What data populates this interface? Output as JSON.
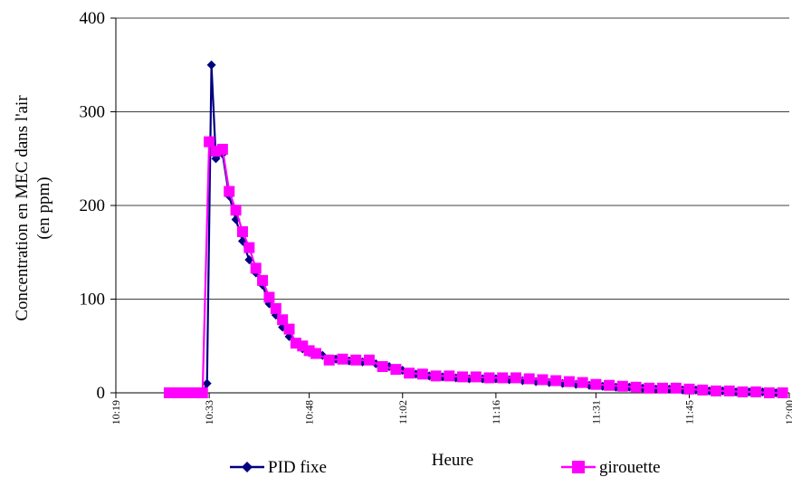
{
  "chart_data": {
    "type": "line",
    "title": "",
    "xlabel": "Heure",
    "ylabel_line1": "Concentration en MEC dans l'air",
    "ylabel_line2": "(en ppm)",
    "ylim": [
      0,
      400
    ],
    "yticks": [
      "0",
      "100",
      "200",
      "300",
      "400"
    ],
    "xlim": [
      "10:19",
      "12:00"
    ],
    "xticks": [
      "10:19",
      "10:33",
      "10:48",
      "11:02",
      "11:16",
      "11:31",
      "11:45",
      "12:00"
    ],
    "grid": "horizontal",
    "legend_position": "bottom",
    "series": [
      {
        "name": "PID fixe",
        "color": "#000080",
        "marker": "diamond",
        "points": [
          [
            "10:27",
            0
          ],
          [
            "10:28",
            0
          ],
          [
            "10:29",
            0
          ],
          [
            "10:30",
            0
          ],
          [
            "10:31",
            0
          ],
          [
            "10:32",
            0
          ],
          [
            "10:32:40",
            10
          ],
          [
            "10:33:20",
            350
          ],
          [
            "10:34",
            250
          ],
          [
            "10:35",
            255
          ],
          [
            "10:36",
            210
          ],
          [
            "10:37",
            185
          ],
          [
            "10:38",
            162
          ],
          [
            "10:39",
            142
          ],
          [
            "10:40",
            128
          ],
          [
            "10:41",
            115
          ],
          [
            "10:42",
            95
          ],
          [
            "10:43",
            83
          ],
          [
            "10:44",
            70
          ],
          [
            "10:45",
            60
          ],
          [
            "10:46",
            52
          ],
          [
            "10:47",
            47
          ],
          [
            "10:48",
            43
          ],
          [
            "10:50",
            40
          ],
          [
            "10:52",
            36
          ],
          [
            "10:54",
            34
          ],
          [
            "10:56",
            33
          ],
          [
            "10:58",
            31
          ],
          [
            "11:00",
            28
          ],
          [
            "11:02",
            24
          ],
          [
            "11:04",
            20
          ],
          [
            "11:06",
            18
          ],
          [
            "11:08",
            17
          ],
          [
            "11:10",
            16
          ],
          [
            "11:12",
            15
          ],
          [
            "11:14",
            15
          ],
          [
            "11:16",
            15
          ],
          [
            "11:18",
            14
          ],
          [
            "11:20",
            13
          ],
          [
            "11:22",
            12
          ],
          [
            "11:24",
            11
          ],
          [
            "11:26",
            10
          ],
          [
            "11:28",
            9
          ],
          [
            "11:30",
            8
          ],
          [
            "11:32",
            7
          ],
          [
            "11:34",
            6
          ],
          [
            "11:36",
            6
          ],
          [
            "11:38",
            5
          ],
          [
            "11:40",
            4
          ],
          [
            "11:42",
            4
          ],
          [
            "11:44",
            3
          ],
          [
            "11:46",
            3
          ],
          [
            "11:48",
            2
          ],
          [
            "11:50",
            2
          ],
          [
            "11:52",
            1
          ],
          [
            "11:54",
            1
          ],
          [
            "11:56",
            1
          ],
          [
            "11:58",
            0
          ]
        ]
      },
      {
        "name": "girouette",
        "color": "#FF00FF",
        "marker": "square",
        "points": [
          [
            "10:27",
            0
          ],
          [
            "10:28",
            0
          ],
          [
            "10:29",
            0
          ],
          [
            "10:30",
            0
          ],
          [
            "10:31",
            0
          ],
          [
            "10:32",
            0
          ],
          [
            "10:33",
            268
          ],
          [
            "10:34",
            258
          ],
          [
            "10:35",
            260
          ],
          [
            "10:36",
            215
          ],
          [
            "10:37",
            195
          ],
          [
            "10:38",
            172
          ],
          [
            "10:39",
            155
          ],
          [
            "10:40",
            133
          ],
          [
            "10:41",
            120
          ],
          [
            "10:42",
            102
          ],
          [
            "10:43",
            90
          ],
          [
            "10:44",
            78
          ],
          [
            "10:45",
            68
          ],
          [
            "10:46",
            53
          ],
          [
            "10:47",
            50
          ],
          [
            "10:48",
            45
          ],
          [
            "10:49",
            42
          ],
          [
            "10:51",
            35
          ],
          [
            "10:53",
            36
          ],
          [
            "10:55",
            35
          ],
          [
            "10:57",
            35
          ],
          [
            "10:59",
            28
          ],
          [
            "11:01",
            25
          ],
          [
            "11:03",
            21
          ],
          [
            "11:05",
            20
          ],
          [
            "11:07",
            18
          ],
          [
            "11:09",
            18
          ],
          [
            "11:11",
            17
          ],
          [
            "11:13",
            17
          ],
          [
            "11:15",
            16
          ],
          [
            "11:17",
            16
          ],
          [
            "11:19",
            16
          ],
          [
            "11:21",
            15
          ],
          [
            "11:23",
            14
          ],
          [
            "11:25",
            13
          ],
          [
            "11:27",
            12
          ],
          [
            "11:29",
            11
          ],
          [
            "11:31",
            9
          ],
          [
            "11:33",
            8
          ],
          [
            "11:35",
            7
          ],
          [
            "11:37",
            6
          ],
          [
            "11:39",
            5
          ],
          [
            "11:41",
            5
          ],
          [
            "11:43",
            5
          ],
          [
            "11:45",
            4
          ],
          [
            "11:47",
            3
          ],
          [
            "11:49",
            2
          ],
          [
            "11:51",
            2
          ],
          [
            "11:53",
            1
          ],
          [
            "11:55",
            1
          ],
          [
            "11:57",
            0
          ],
          [
            "11:59",
            0
          ]
        ]
      }
    ]
  }
}
